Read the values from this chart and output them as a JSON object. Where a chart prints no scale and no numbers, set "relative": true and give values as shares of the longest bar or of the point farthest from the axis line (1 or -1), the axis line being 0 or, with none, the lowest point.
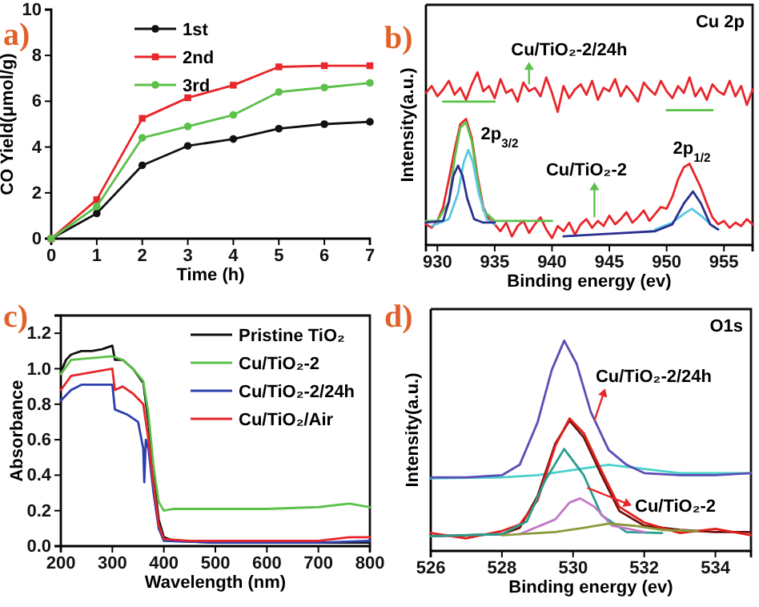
{
  "chart_data": [
    {
      "type": "line",
      "title": "a)",
      "xlabel": "Time (h)",
      "ylabel": "CO Yield(μmol/g)",
      "x": [
        0,
        1,
        2,
        3,
        4,
        5,
        6,
        7
      ],
      "xlim": [
        0,
        7
      ],
      "ylim": [
        0,
        10
      ],
      "xticks": [
        0,
        1,
        2,
        3,
        4,
        5,
        6,
        7
      ],
      "yticks": [
        0,
        2,
        4,
        6,
        8,
        10
      ],
      "legend": "top left",
      "marker": "circle",
      "series": [
        {
          "name": "1st",
          "color": "#111111",
          "values": [
            0,
            1.1,
            3.2,
            4.05,
            4.35,
            4.8,
            5.0,
            5.1
          ]
        },
        {
          "name": "2nd",
          "color": "#e8262b",
          "marker": "square",
          "values": [
            0,
            1.7,
            5.25,
            6.15,
            6.7,
            7.5,
            7.55,
            7.55
          ]
        },
        {
          "name": "3rd",
          "color": "#5cc14a",
          "values": [
            0,
            1.4,
            4.4,
            4.9,
            5.4,
            6.4,
            6.6,
            6.8
          ]
        }
      ]
    },
    {
      "type": "line",
      "title": "b)",
      "xlabel": "Binding energy (ev)",
      "ylabel": "Intensity(a.u.)",
      "relative": true,
      "xlim": [
        929,
        957.5
      ],
      "xticks": [
        930,
        935,
        940,
        945,
        950,
        955
      ],
      "annotations": [
        "Cu 2p",
        {
          "text": "Cu/TiO₂-2/24h",
          "x": 938,
          "y": 0.93
        },
        {
          "text": "Cu/TiO₂-2",
          "x": 943.7,
          "y": 0.16
        },
        "2p$_{3/2}$",
        "2p$_{1/2}$"
      ],
      "series": [
        {
          "color": "#e8262b",
          "x": [
            929,
            929.5,
            930,
            930.5,
            931,
            931.5,
            932,
            932.5,
            933,
            933.5,
            934,
            934.5,
            935,
            935.5,
            936,
            936.5,
            937,
            937.5,
            938,
            938.5,
            939,
            939.5,
            940,
            940.5,
            941,
            941.5,
            942,
            942.5,
            943,
            943.5,
            944,
            944.5,
            945,
            945.5,
            946,
            946.5,
            947,
            947.5,
            948,
            948.5,
            949,
            949.5,
            950,
            950.5,
            951,
            951.5,
            952,
            952.5,
            953,
            953.5,
            954,
            954.5,
            955,
            955.5,
            956,
            956.5,
            957,
            957.5
          ],
          "values": [
            0.88,
            0.92,
            0.86,
            0.9,
            0.95,
            0.87,
            0.91,
            0.84,
            0.93,
            1.0,
            0.89,
            0.92,
            0.85,
            0.96,
            0.88,
            0.9,
            0.83,
            0.94,
            0.89,
            0.91,
            0.86,
            0.97,
            0.88,
            0.77,
            0.92,
            0.85,
            0.9,
            0.93,
            0.87,
            0.95,
            0.84,
            0.91,
            0.89,
            0.96,
            0.86,
            0.92,
            0.88,
            0.83,
            0.94,
            0.9,
            0.87,
            0.95,
            0.89,
            0.85,
            0.92,
            0.88,
            0.97,
            0.86,
            0.91,
            0.84,
            0.93,
            0.89,
            0.87,
            0.95,
            0.86,
            0.92,
            0.81,
            0.9
          ]
        },
        {
          "color": "#5cc14a",
          "x": [
            930.5,
            935
          ],
          "values": [
            0.83,
            0.83
          ]
        },
        {
          "color": "#5cc14a",
          "x": [
            950,
            954
          ],
          "values": [
            0.78,
            0.78
          ]
        },
        {
          "color": "#e8262b",
          "x": [
            929,
            929.5,
            930,
            930.5,
            931,
            931.5,
            932,
            932.5,
            933,
            933.5,
            934,
            934.5,
            935,
            935.5,
            936,
            936.5,
            937,
            937.5,
            938,
            938.5,
            939,
            939.5,
            940,
            940.5,
            941,
            941.5,
            942,
            942.5,
            943,
            943.5,
            944,
            944.5,
            945,
            945.5,
            946,
            946.5,
            947,
            947.5,
            948,
            948.5,
            949,
            949.5,
            950,
            950.5,
            951,
            951.5,
            952,
            952.5,
            953,
            953.5,
            954,
            954.5,
            955,
            955.5,
            956,
            956.5,
            957,
            957.5
          ],
          "values": [
            0.12,
            0.1,
            0.14,
            0.22,
            0.38,
            0.55,
            0.7,
            0.73,
            0.62,
            0.4,
            0.22,
            0.15,
            0.12,
            0.08,
            0.13,
            0.05,
            0.11,
            0.14,
            0.07,
            0.12,
            0.16,
            0.09,
            0.04,
            0.11,
            0.08,
            0.13,
            0.06,
            0.12,
            0.15,
            0.1,
            0.14,
            0.11,
            0.17,
            0.12,
            0.15,
            0.19,
            0.13,
            0.16,
            0.2,
            0.14,
            0.18,
            0.22,
            0.21,
            0.28,
            0.38,
            0.45,
            0.47,
            0.4,
            0.33,
            0.24,
            0.16,
            0.12,
            0.14,
            0.1,
            0.13,
            0.11,
            0.15,
            0.12
          ]
        },
        {
          "color": "#5cc14a",
          "x": [
            929,
            930,
            931,
            931.5,
            932,
            932.5,
            933,
            933.5,
            934,
            935,
            940
          ],
          "values": [
            0.14,
            0.14,
            0.25,
            0.5,
            0.68,
            0.71,
            0.6,
            0.38,
            0.2,
            0.14,
            0.14
          ]
        },
        {
          "color": "#5bc8e0",
          "x": [
            929.5,
            931,
            931.8,
            932.3,
            932.7,
            933.1,
            933.6,
            934.3,
            935
          ],
          "values": [
            0.11,
            0.15,
            0.3,
            0.48,
            0.55,
            0.48,
            0.3,
            0.15,
            0.12
          ]
        },
        {
          "color": "#5bc8e0",
          "x": [
            949,
            950.5,
            951.5,
            952.2,
            953,
            954,
            954.5
          ],
          "values": [
            0.09,
            0.13,
            0.18,
            0.21,
            0.17,
            0.11,
            0.09
          ]
        },
        {
          "color": "#2a2f8f",
          "x": [
            929,
            930.5,
            931,
            931.4,
            931.8,
            932.2,
            932.6,
            933.2,
            934,
            935
          ],
          "values": [
            0.13,
            0.14,
            0.25,
            0.4,
            0.46,
            0.4,
            0.27,
            0.15,
            0.13,
            0.13
          ]
        },
        {
          "color": "#2a2f8f",
          "x": [
            941,
            945,
            949,
            950.5,
            951.5,
            952.3,
            953,
            953.8,
            954.5
          ],
          "values": [
            0.05,
            0.065,
            0.08,
            0.12,
            0.24,
            0.31,
            0.24,
            0.12,
            0.09
          ]
        }
      ]
    },
    {
      "type": "line",
      "title": "c)",
      "xlabel": "Wavelength (nm)",
      "ylabel": "Absorbance",
      "xlim": [
        200,
        800
      ],
      "ylim": [
        0,
        1.3
      ],
      "xticks": [
        200,
        300,
        400,
        500,
        600,
        700,
        800
      ],
      "yticks": [
        {
          "value": 0,
          "label": "0.0"
        },
        0.2,
        0.4,
        0.6,
        0.8,
        {
          "value": 1,
          "label": "1.0"
        },
        1.2
      ],
      "legend": "top right",
      "series": [
        {
          "name": "Pristine TiO₂",
          "color": "#111111",
          "x": [
            200,
            210,
            220,
            240,
            260,
            280,
            300,
            305,
            320,
            340,
            360,
            370,
            380,
            390,
            400,
            420,
            500,
            600,
            700,
            800
          ],
          "values": [
            0.98,
            1.05,
            1.08,
            1.1,
            1.1,
            1.11,
            1.13,
            1.05,
            1.05,
            1.0,
            0.92,
            0.7,
            0.4,
            0.15,
            0.05,
            0.03,
            0.02,
            0.02,
            0.02,
            0.02
          ]
        },
        {
          "name": "Cu/TiO₂-2",
          "color": "#5cc14a",
          "x": [
            200,
            220,
            260,
            300,
            320,
            340,
            360,
            370,
            380,
            390,
            400,
            420,
            500,
            600,
            700,
            760,
            800
          ],
          "values": [
            0.97,
            1.05,
            1.06,
            1.07,
            1.05,
            1.0,
            0.93,
            0.75,
            0.45,
            0.25,
            0.2,
            0.21,
            0.21,
            0.21,
            0.22,
            0.24,
            0.22
          ]
        },
        {
          "name": "Cu/TiO₂-2/24h",
          "color": "#2c3fb0",
          "x": [
            200,
            220,
            240,
            300,
            305,
            330,
            350,
            360,
            362,
            365,
            370,
            380,
            390,
            400,
            500,
            700,
            800
          ],
          "values": [
            0.82,
            0.88,
            0.91,
            0.91,
            0.77,
            0.74,
            0.7,
            0.55,
            0.36,
            0.6,
            0.55,
            0.3,
            0.1,
            0.03,
            0.02,
            0.02,
            0.03
          ]
        },
        {
          "name": "Cu/TiO₂/Air",
          "color": "#e8262b",
          "x": [
            200,
            220,
            260,
            300,
            305,
            320,
            340,
            360,
            370,
            380,
            390,
            400,
            450,
            600,
            700,
            760,
            800
          ],
          "values": [
            0.88,
            0.96,
            0.98,
            1.0,
            0.88,
            0.9,
            0.86,
            0.8,
            0.6,
            0.35,
            0.12,
            0.04,
            0.03,
            0.03,
            0.03,
            0.05,
            0.05
          ]
        }
      ]
    },
    {
      "type": "line",
      "title": "d)",
      "xlabel": "Binding energy (ev)",
      "ylabel": "Intensity(a.u.)",
      "relative": true,
      "xlim": [
        526,
        535
      ],
      "xticks": [
        526,
        528,
        530,
        532,
        534
      ],
      "annotations": [
        "O1s",
        {
          "text": "Cu/TiO₂-2/24h",
          "x": 530.6,
          "y": 0.62
        },
        {
          "text": "Cu/TiO₂-2",
          "x": 530.4,
          "y": 0.3
        }
      ],
      "series": [
        {
          "color": "#48d1cc",
          "x": [
            526,
            528,
            529,
            530,
            531,
            532,
            533,
            535
          ],
          "values": [
            0.345,
            0.35,
            0.36,
            0.385,
            0.41,
            0.39,
            0.37,
            0.37
          ]
        },
        {
          "color": "#5a4db5",
          "x": [
            526,
            527,
            528,
            528.5,
            529,
            529.4,
            529.75,
            530.1,
            530.5,
            531,
            531.5,
            532,
            533,
            534,
            535
          ],
          "values": [
            0.35,
            0.35,
            0.36,
            0.41,
            0.61,
            0.86,
            1.0,
            0.89,
            0.66,
            0.48,
            0.41,
            0.37,
            0.36,
            0.36,
            0.37
          ]
        },
        {
          "color": "#6b1010",
          "x": [
            526,
            527,
            528,
            528.5,
            529,
            529.5,
            529.9,
            530.3,
            530.8,
            531.3,
            532,
            533,
            534,
            535
          ],
          "values": [
            0.07,
            0.075,
            0.08,
            0.11,
            0.26,
            0.51,
            0.62,
            0.54,
            0.36,
            0.19,
            0.12,
            0.1,
            0.09,
            0.09
          ]
        },
        {
          "color": "#e0201b",
          "x": [
            526,
            527,
            528,
            528.5,
            529,
            529.5,
            529.9,
            530.3,
            530.8,
            531.3,
            532,
            533,
            534,
            535
          ],
          "values": [
            0.085,
            0.06,
            0.095,
            0.125,
            0.24,
            0.5,
            0.63,
            0.56,
            0.38,
            0.21,
            0.135,
            0.085,
            0.105,
            0.075
          ]
        },
        {
          "color": "#2a9d8f",
          "x": [
            526,
            528,
            528.7,
            529.2,
            529.75,
            530.3,
            530.8,
            531.5,
            532.5
          ],
          "values": [
            0.07,
            0.08,
            0.14,
            0.33,
            0.485,
            0.36,
            0.17,
            0.09,
            0.085
          ]
        },
        {
          "color": "#c576c7",
          "x": [
            528.5,
            529.5,
            529.9,
            530.2,
            530.6,
            531.1,
            532
          ],
          "values": [
            0.08,
            0.15,
            0.23,
            0.25,
            0.21,
            0.12,
            0.09
          ]
        },
        {
          "color": "#8a9a3a",
          "x": [
            528,
            529.5,
            530.3,
            531,
            531.7,
            532.5,
            533.5
          ],
          "values": [
            0.075,
            0.09,
            0.11,
            0.13,
            0.12,
            0.1,
            0.095
          ]
        }
      ]
    }
  ]
}
